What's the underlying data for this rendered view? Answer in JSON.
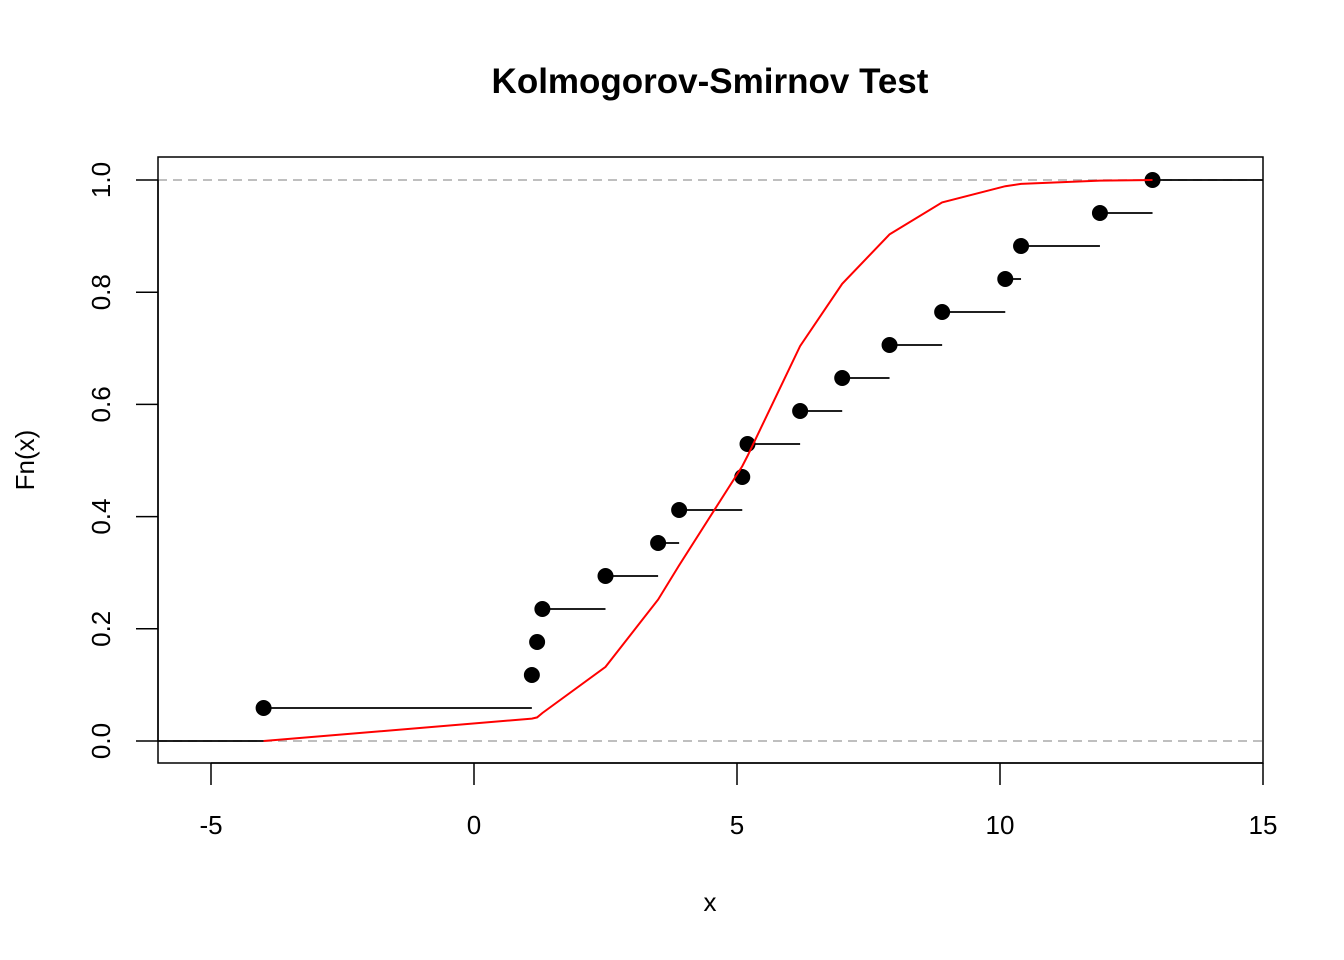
{
  "chart_data": {
    "type": "line",
    "title": "Kolmogorov-Smirnov Test",
    "xlabel": "x",
    "ylabel": "Fn(x)",
    "xlim": [
      -6,
      15
    ],
    "ylim": [
      -0.04,
      1.04
    ],
    "xticks": [
      -5,
      0,
      5,
      10,
      15
    ],
    "yticks": [
      0.0,
      0.2,
      0.4,
      0.6,
      0.8,
      1.0
    ],
    "ytick_labels": [
      "0.0",
      "0.2",
      "0.4",
      "0.6",
      "0.8",
      "1.0"
    ],
    "reference_lines_y": [
      0,
      1
    ],
    "ecdf": {
      "color": "#000000",
      "x_start": -6,
      "x_end": 15,
      "points": [
        {
          "x": -4.0,
          "y": 0.0588
        },
        {
          "x": 1.1,
          "y": 0.1176
        },
        {
          "x": 1.2,
          "y": 0.1765
        },
        {
          "x": 1.3,
          "y": 0.2353
        },
        {
          "x": 2.5,
          "y": 0.2941
        },
        {
          "x": 3.5,
          "y": 0.3529
        },
        {
          "x": 3.9,
          "y": 0.4118
        },
        {
          "x": 5.1,
          "y": 0.4706
        },
        {
          "x": 5.2,
          "y": 0.5294
        },
        {
          "x": 6.2,
          "y": 0.5882
        },
        {
          "x": 7.0,
          "y": 0.6471
        },
        {
          "x": 7.9,
          "y": 0.7059
        },
        {
          "x": 8.9,
          "y": 0.7647
        },
        {
          "x": 10.1,
          "y": 0.8235
        },
        {
          "x": 10.4,
          "y": 0.8824
        },
        {
          "x": 11.9,
          "y": 0.9412
        },
        {
          "x": 12.9,
          "y": 1.0
        }
      ]
    },
    "theoretical_cdf": {
      "color": "#ff0000",
      "x": [
        -4.0,
        1.1,
        1.2,
        1.3,
        2.5,
        3.5,
        3.9,
        5.1,
        5.2,
        6.2,
        7.0,
        7.9,
        8.9,
        10.1,
        10.4,
        11.9,
        12.9
      ],
      "y": [
        0.0,
        0.04,
        0.042,
        0.05,
        0.132,
        0.252,
        0.313,
        0.49,
        0.508,
        0.704,
        0.815,
        0.903,
        0.96,
        0.989,
        0.993,
        0.999,
        1.0
      ]
    }
  }
}
